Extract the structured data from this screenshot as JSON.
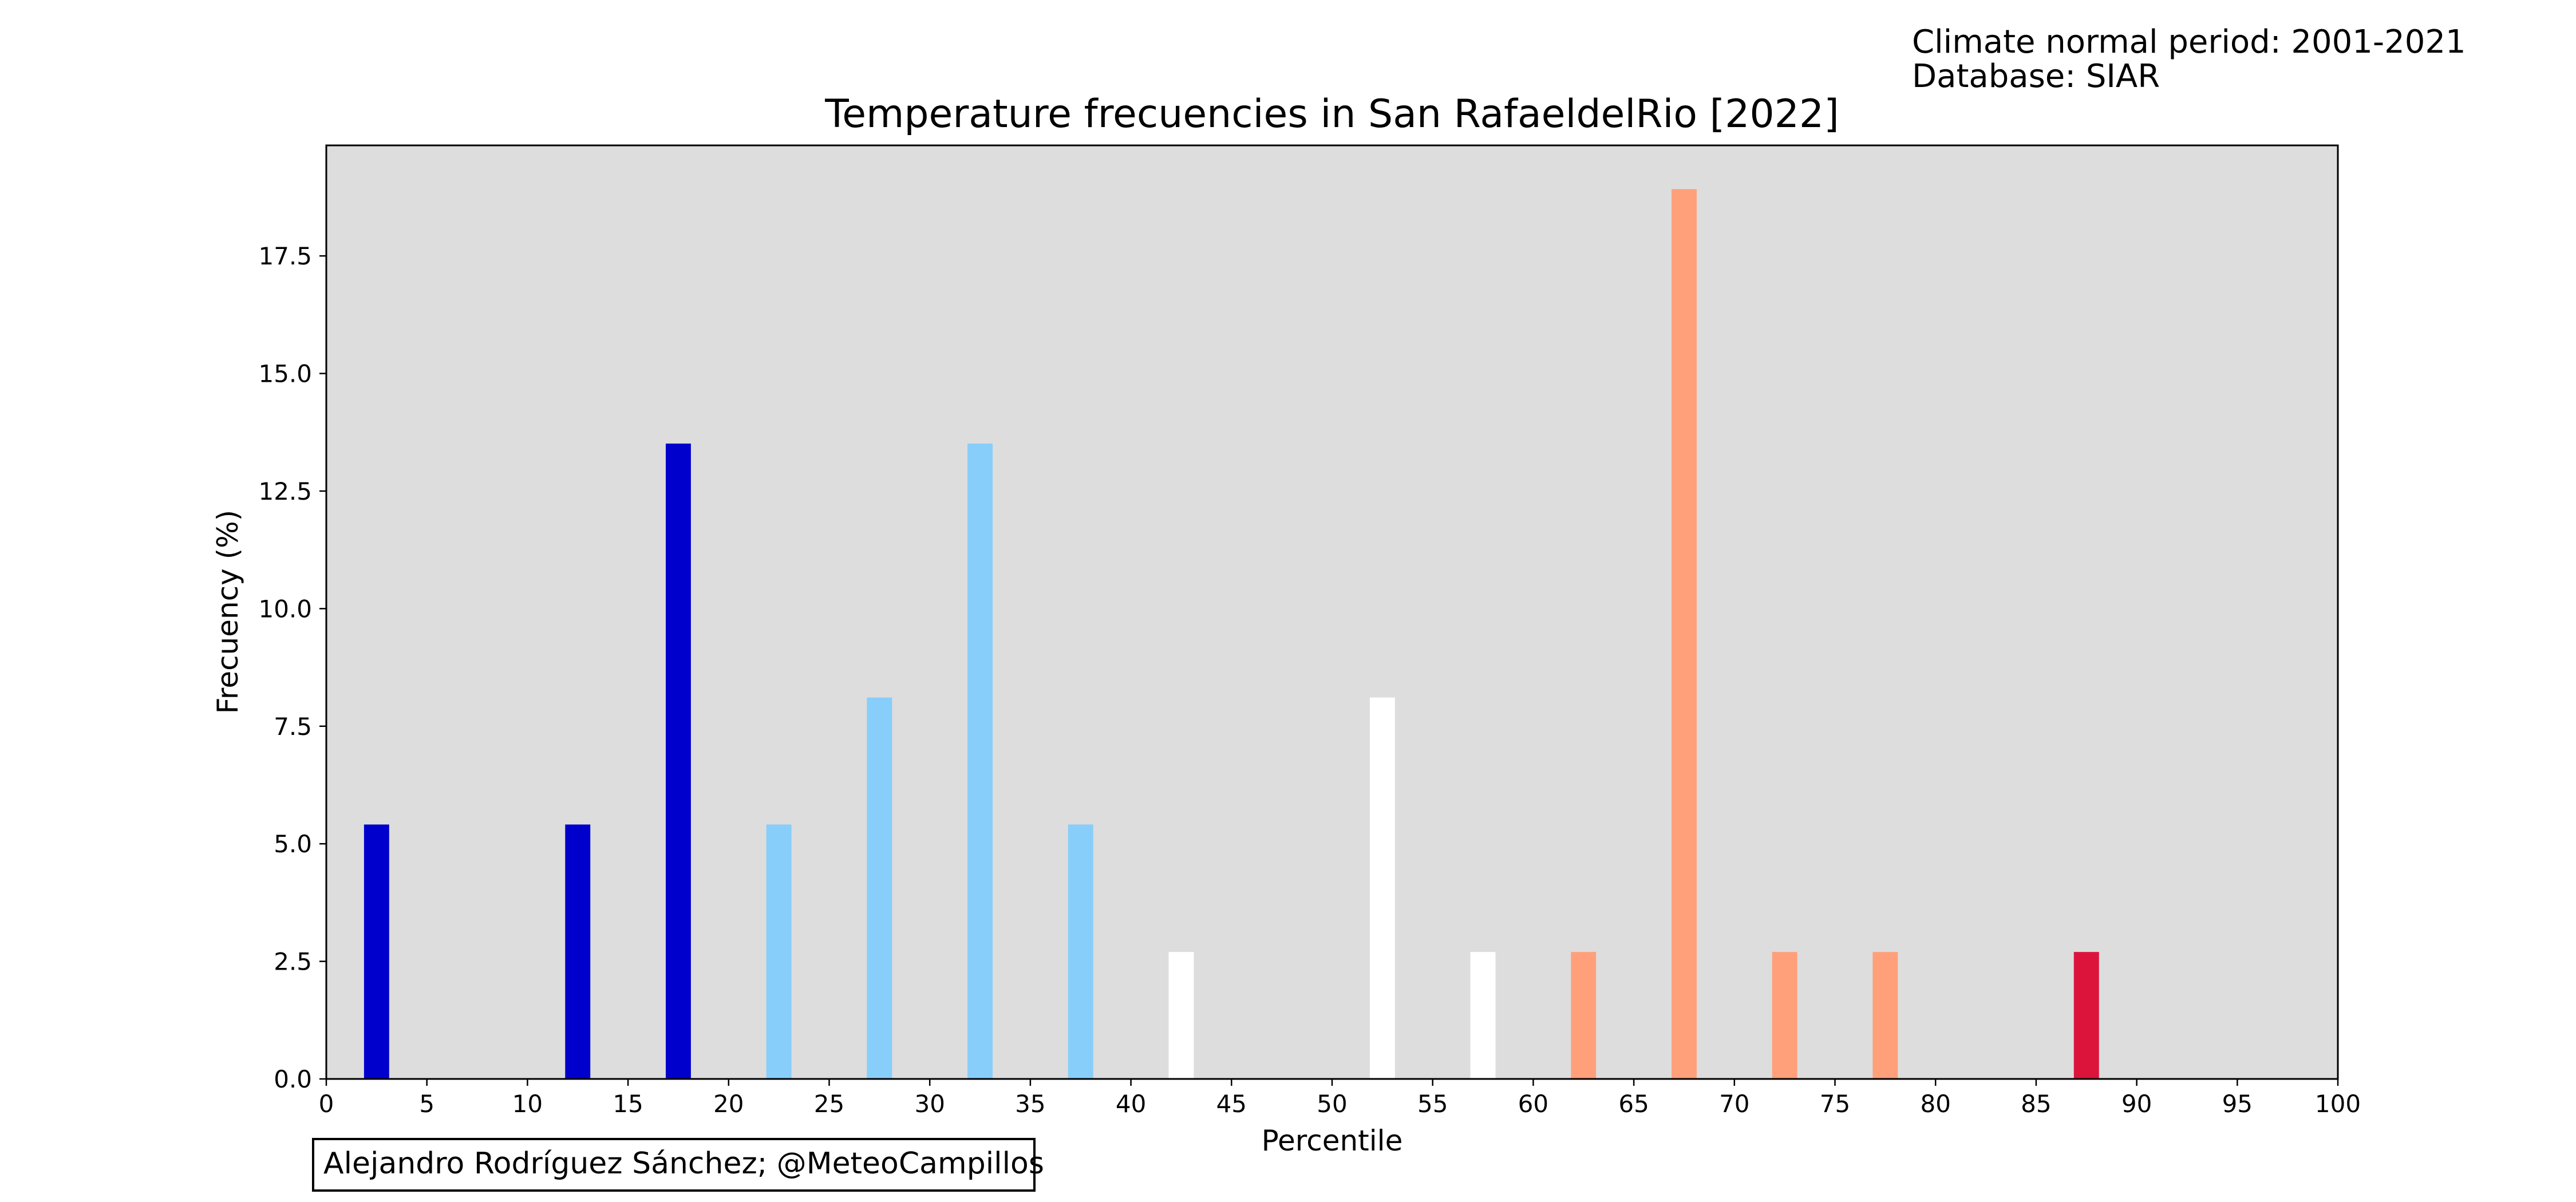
{
  "header": {
    "normal_period": "Climate normal period: 2001-2021",
    "database": "Database: SIAR"
  },
  "credit": "Alejandro Rodríguez Sánchez; @MeteoCampillos",
  "chart_data": {
    "type": "bar",
    "title": "Temperature frecuencies in San RafaeldelRio [2022]",
    "xlabel": "Percentile",
    "ylabel": "Frecuency (%)",
    "xlim": [
      0,
      100
    ],
    "ylim": [
      0,
      19.85
    ],
    "xticks": [
      0,
      5,
      10,
      15,
      20,
      25,
      30,
      35,
      40,
      45,
      50,
      55,
      60,
      65,
      70,
      75,
      80,
      85,
      90,
      95,
      100
    ],
    "yticks": [
      0.0,
      2.5,
      5.0,
      7.5,
      10.0,
      12.5,
      15.0,
      17.5
    ],
    "ytick_labels": [
      "0.0",
      "2.5",
      "5.0",
      "7.5",
      "10.0",
      "12.5",
      "15.0",
      "17.5"
    ],
    "plot_background": "#dddddd",
    "bar_width": 1.25,
    "bars": [
      {
        "x": 2.5,
        "value": 5.41,
        "color": "#0000cd"
      },
      {
        "x": 12.5,
        "value": 5.41,
        "color": "#0000cd"
      },
      {
        "x": 17.5,
        "value": 13.51,
        "color": "#0000cd"
      },
      {
        "x": 22.5,
        "value": 5.41,
        "color": "#87cefa"
      },
      {
        "x": 27.5,
        "value": 8.11,
        "color": "#87cefa"
      },
      {
        "x": 32.5,
        "value": 13.51,
        "color": "#87cefa"
      },
      {
        "x": 37.5,
        "value": 5.41,
        "color": "#87cefa"
      },
      {
        "x": 42.5,
        "value": 2.7,
        "color": "#ffffff"
      },
      {
        "x": 52.5,
        "value": 8.11,
        "color": "#ffffff"
      },
      {
        "x": 57.5,
        "value": 2.7,
        "color": "#ffffff"
      },
      {
        "x": 62.5,
        "value": 2.7,
        "color": "#ffa07a"
      },
      {
        "x": 67.5,
        "value": 18.92,
        "color": "#ffa07a"
      },
      {
        "x": 72.5,
        "value": 2.7,
        "color": "#ffa07a"
      },
      {
        "x": 77.5,
        "value": 2.7,
        "color": "#ffa07a"
      },
      {
        "x": 87.5,
        "value": 2.7,
        "color": "#dc143c"
      }
    ]
  }
}
